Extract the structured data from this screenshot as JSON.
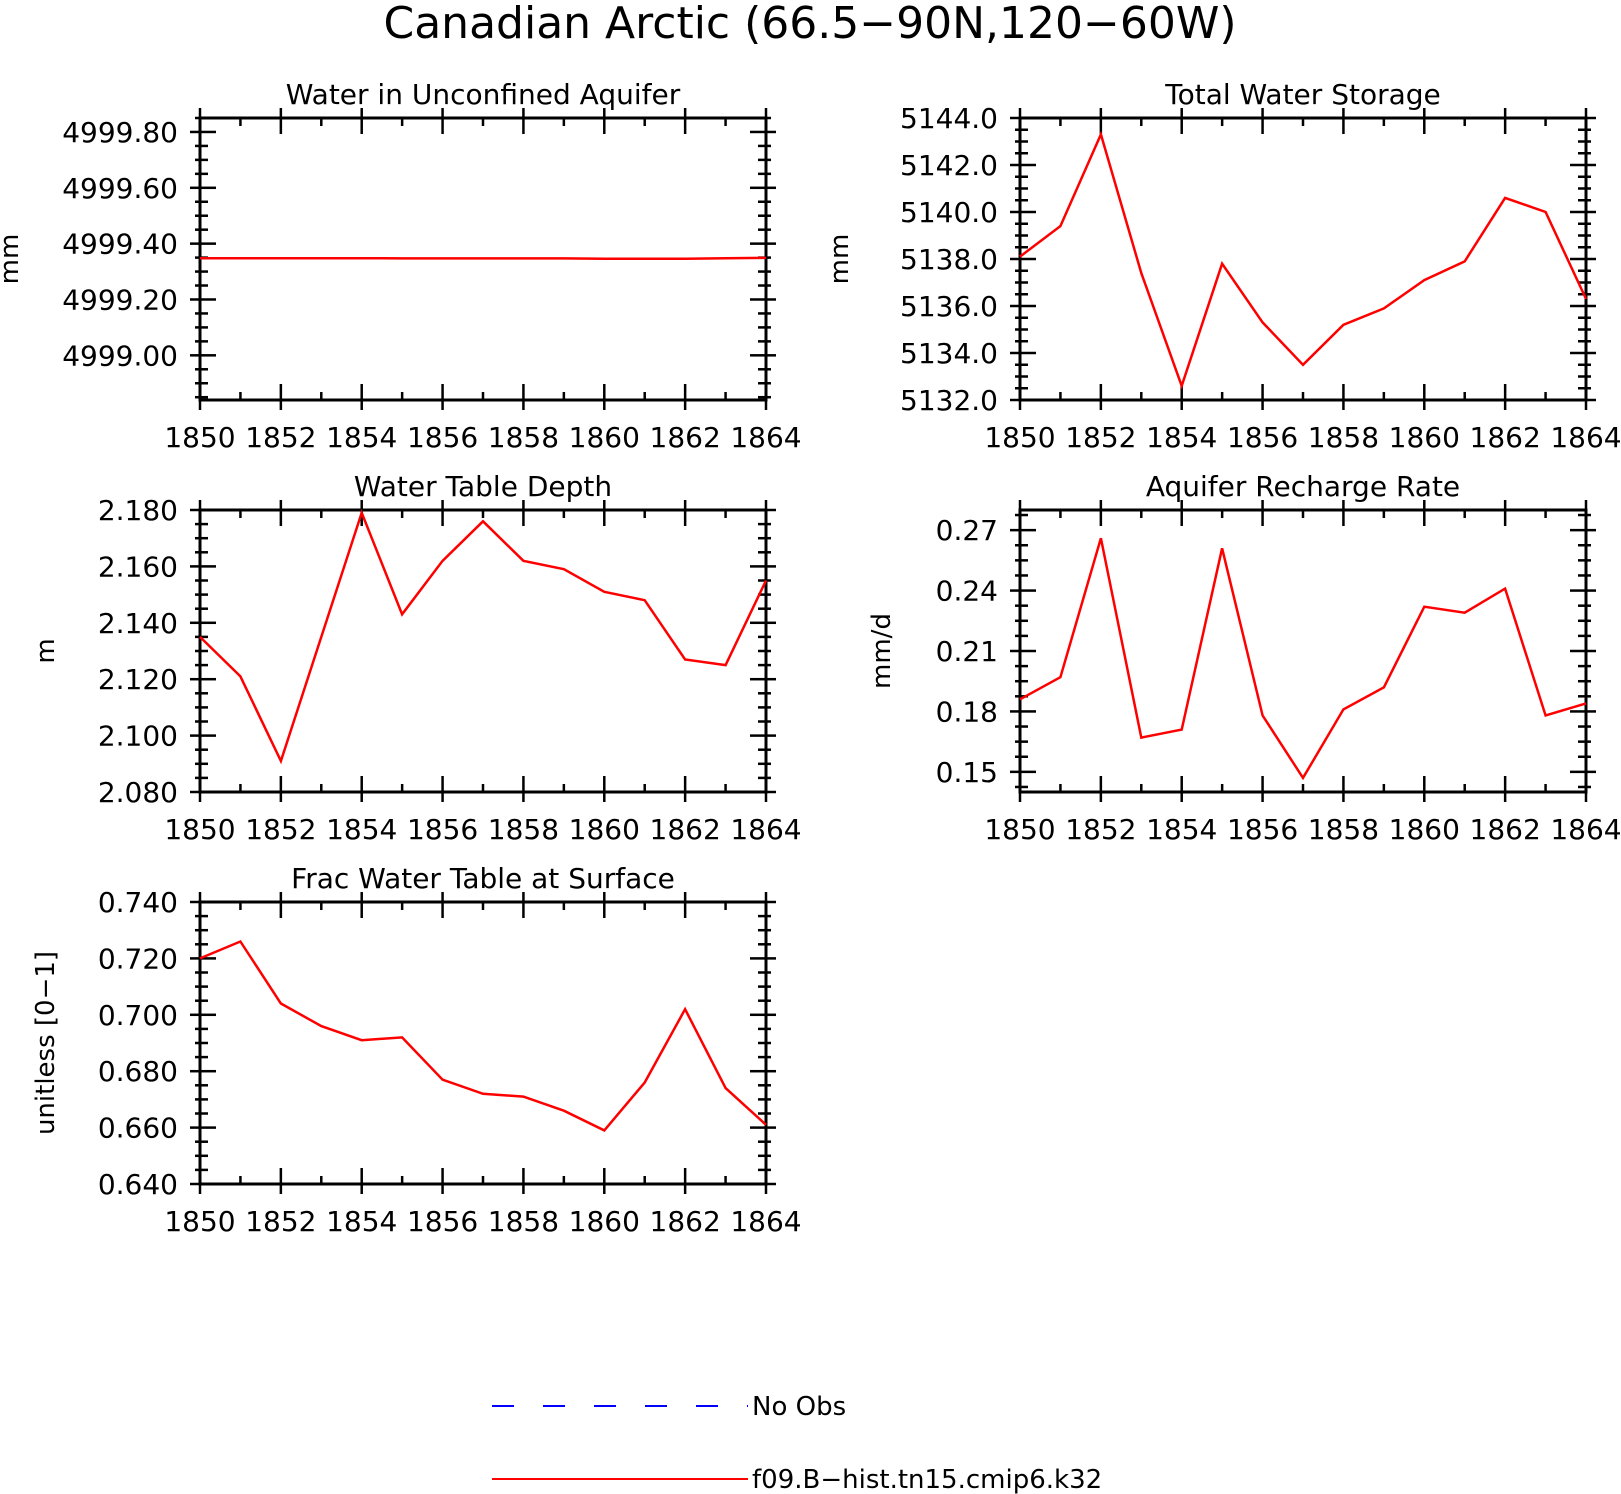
{
  "figure_title": "Canadian Arctic (66.5−90N,120−60W)",
  "colors": {
    "model": "#ff0000",
    "obs": "#0000ff",
    "axes": "#000000"
  },
  "legend": [
    {
      "label": "No Obs",
      "style": "dashed",
      "color": "#0000ff"
    },
    {
      "label": "f09.B−hist.tn15.cmip6.k32",
      "style": "solid",
      "color": "#ff0000"
    }
  ],
  "chart_data": [
    {
      "type": "line",
      "title": "Water in Unconfined Aquifer",
      "ylabel": "mm",
      "xlim": [
        1850,
        1864
      ],
      "ylim": [
        4998.84,
        4999.85
      ],
      "yticks": [
        4999.0,
        4999.2,
        4999.4,
        4999.6,
        4999.8
      ],
      "ytick_labels": [
        "4999.00",
        "4999.20",
        "4999.40",
        "4999.60",
        "4999.80"
      ],
      "xticks": [
        1850,
        1852,
        1854,
        1856,
        1858,
        1860,
        1862,
        1864
      ],
      "xtick_labels": [
        "1850",
        "1852",
        "1854",
        "1856",
        "1858",
        "1860",
        "1862",
        "1864"
      ],
      "x": [
        1850,
        1851,
        1852,
        1853,
        1854,
        1855,
        1856,
        1857,
        1858,
        1859,
        1860,
        1861,
        1862,
        1863,
        1864
      ],
      "series": [
        {
          "name": "f09.B−hist.tn15.cmip6.k32",
          "values": [
            4999.348,
            4999.348,
            4999.348,
            4999.348,
            4999.348,
            4999.347,
            4999.347,
            4999.347,
            4999.347,
            4999.347,
            4999.346,
            4999.346,
            4999.346,
            4999.348,
            4999.349
          ]
        }
      ]
    },
    {
      "type": "line",
      "title": "Total Water Storage",
      "ylabel": "mm",
      "xlim": [
        1850,
        1864
      ],
      "ylim": [
        5132.0,
        5144.0
      ],
      "yticks": [
        5132,
        5134,
        5136,
        5138,
        5140,
        5142,
        5144
      ],
      "ytick_labels": [
        "5132.0",
        "5134.0",
        "5136.0",
        "5138.0",
        "5140.0",
        "5142.0",
        "5144.0"
      ],
      "xticks": [
        1850,
        1852,
        1854,
        1856,
        1858,
        1860,
        1862,
        1864
      ],
      "xtick_labels": [
        "1850",
        "1852",
        "1854",
        "1856",
        "1858",
        "1860",
        "1862",
        "1864"
      ],
      "x": [
        1850,
        1851,
        1852,
        1853,
        1854,
        1855,
        1856,
        1857,
        1858,
        1859,
        1860,
        1861,
        1862,
        1863,
        1864
      ],
      "series": [
        {
          "name": "f09.B−hist.tn15.cmip6.k32",
          "values": [
            5138.1,
            5139.4,
            5143.3,
            5137.4,
            5132.6,
            5137.8,
            5135.3,
            5133.5,
            5135.2,
            5135.9,
            5137.1,
            5137.9,
            5140.6,
            5140.0,
            5136.3
          ]
        }
      ]
    },
    {
      "type": "line",
      "title": "Water Table Depth",
      "ylabel": "m",
      "xlim": [
        1850,
        1864
      ],
      "ylim": [
        2.08,
        2.18
      ],
      "yticks": [
        2.08,
        2.1,
        2.12,
        2.14,
        2.16,
        2.18
      ],
      "ytick_labels": [
        "2.080",
        "2.100",
        "2.120",
        "2.140",
        "2.160",
        "2.180"
      ],
      "xticks": [
        1850,
        1852,
        1854,
        1856,
        1858,
        1860,
        1862,
        1864
      ],
      "xtick_labels": [
        "1850",
        "1852",
        "1854",
        "1856",
        "1858",
        "1860",
        "1862",
        "1864"
      ],
      "x": [
        1850,
        1851,
        1852,
        1853,
        1854,
        1855,
        1856,
        1857,
        1858,
        1859,
        1860,
        1861,
        1862,
        1863,
        1864
      ],
      "series": [
        {
          "name": "f09.B−hist.tn15.cmip6.k32",
          "values": [
            2.135,
            2.121,
            2.091,
            2.135,
            2.179,
            2.143,
            2.162,
            2.176,
            2.162,
            2.159,
            2.151,
            2.148,
            2.127,
            2.125,
            2.155
          ]
        }
      ]
    },
    {
      "type": "line",
      "title": "Aquifer Recharge Rate",
      "ylabel": "mm/d",
      "xlim": [
        1850,
        1864
      ],
      "ylim": [
        0.14,
        0.28
      ],
      "yticks": [
        0.15,
        0.18,
        0.21,
        0.24,
        0.27
      ],
      "ytick_labels": [
        "0.15",
        "0.18",
        "0.21",
        "0.24",
        "0.27"
      ],
      "xticks": [
        1850,
        1852,
        1854,
        1856,
        1858,
        1860,
        1862,
        1864
      ],
      "xtick_labels": [
        "1850",
        "1852",
        "1854",
        "1856",
        "1858",
        "1860",
        "1862",
        "1864"
      ],
      "x": [
        1850,
        1851,
        1852,
        1853,
        1854,
        1855,
        1856,
        1857,
        1858,
        1859,
        1860,
        1861,
        1862,
        1863,
        1864
      ],
      "series": [
        {
          "name": "f09.B−hist.tn15.cmip6.k32",
          "values": [
            0.186,
            0.197,
            0.266,
            0.167,
            0.171,
            0.261,
            0.178,
            0.147,
            0.181,
            0.192,
            0.232,
            0.229,
            0.241,
            0.178,
            0.184
          ]
        }
      ]
    },
    {
      "type": "line",
      "title": "Frac Water Table at Surface",
      "ylabel": "unitless [0−1]",
      "xlim": [
        1850,
        1864
      ],
      "ylim": [
        0.64,
        0.74
      ],
      "yticks": [
        0.64,
        0.66,
        0.68,
        0.7,
        0.72,
        0.74
      ],
      "ytick_labels": [
        "0.640",
        "0.660",
        "0.680",
        "0.700",
        "0.720",
        "0.740"
      ],
      "xticks": [
        1850,
        1852,
        1854,
        1856,
        1858,
        1860,
        1862,
        1864
      ],
      "xtick_labels": [
        "1850",
        "1852",
        "1854",
        "1856",
        "1858",
        "1860",
        "1862",
        "1864"
      ],
      "x": [
        1850,
        1851,
        1852,
        1853,
        1854,
        1855,
        1856,
        1857,
        1858,
        1859,
        1860,
        1861,
        1862,
        1863,
        1864
      ],
      "series": [
        {
          "name": "f09.B−hist.tn15.cmip6.k32",
          "values": [
            0.72,
            0.726,
            0.704,
            0.696,
            0.691,
            0.692,
            0.677,
            0.672,
            0.671,
            0.666,
            0.659,
            0.676,
            0.702,
            0.674,
            0.661
          ]
        }
      ]
    }
  ]
}
